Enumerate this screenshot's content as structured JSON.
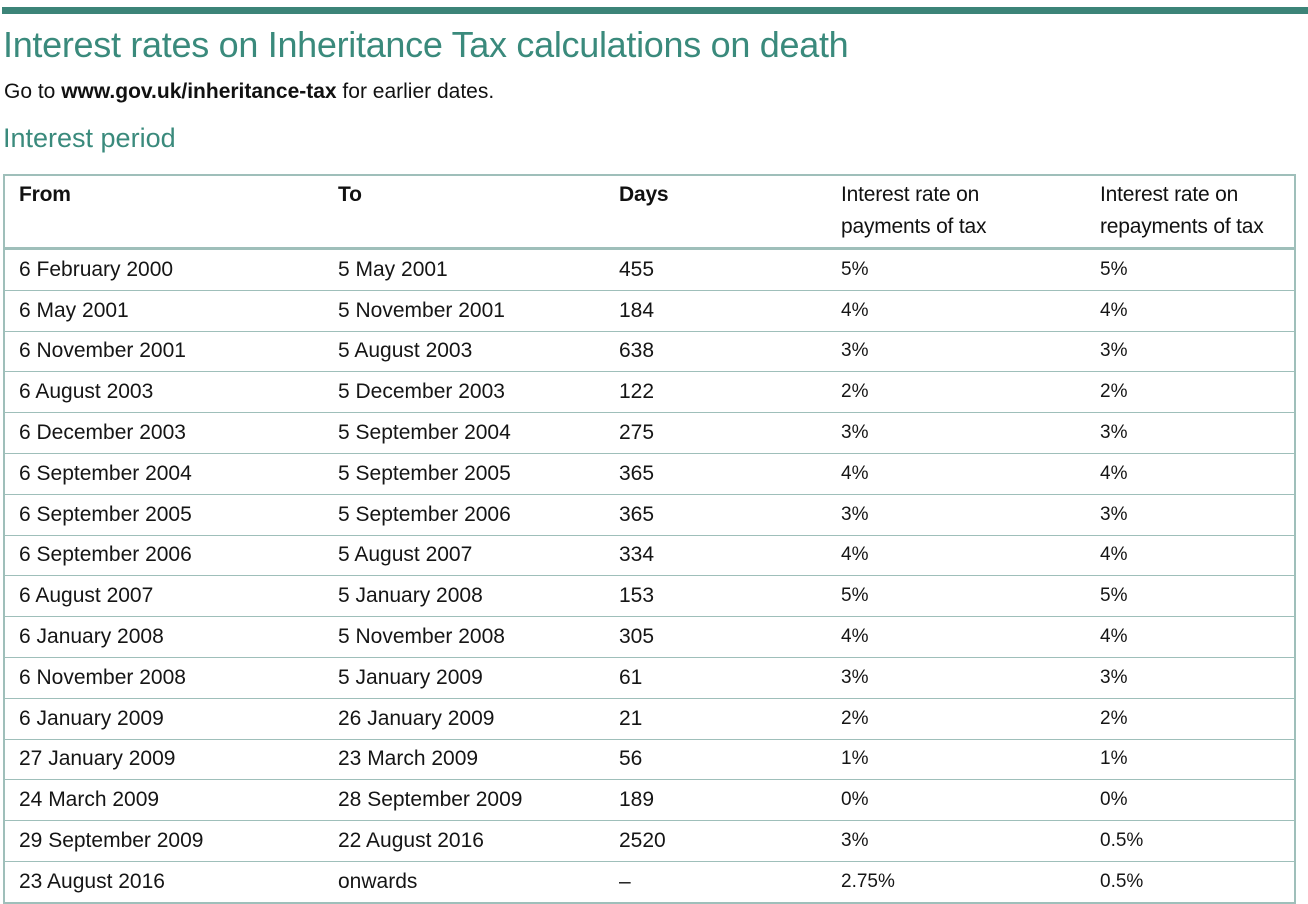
{
  "document": {
    "title": "Interest rates on Inheritance Tax calculations on death",
    "subtitle": {
      "prefix": "Go to ",
      "link": "www.gov.uk/inheritance-tax",
      "suffix": " for earlier dates."
    },
    "section_heading": "Interest period",
    "accent_color": "#3a8a7c",
    "border_color": "#9fbfba"
  },
  "table": {
    "headers": {
      "from": "From",
      "to": "To",
      "days": "Days",
      "payments_line1": "Interest rate on",
      "payments_line2": "payments of tax",
      "repayments_line1": "Interest rate on",
      "repayments_line2": "repayments of tax"
    },
    "rows": [
      {
        "from": "6 February 2000",
        "to": "5 May 2001",
        "days": "455",
        "payments": "5%",
        "repayments": "5%"
      },
      {
        "from": "6 May 2001",
        "to": "5 November 2001",
        "days": "184",
        "payments": "4%",
        "repayments": "4%"
      },
      {
        "from": "6 November 2001",
        "to": "5 August 2003",
        "days": "638",
        "payments": "3%",
        "repayments": "3%"
      },
      {
        "from": "6 August 2003",
        "to": "5 December 2003",
        "days": "122",
        "payments": "2%",
        "repayments": "2%"
      },
      {
        "from": "6 December 2003",
        "to": "5 September 2004",
        "days": "275",
        "payments": "3%",
        "repayments": "3%"
      },
      {
        "from": "6 September 2004",
        "to": "5 September 2005",
        "days": "365",
        "payments": "4%",
        "repayments": "4%"
      },
      {
        "from": "6 September 2005",
        "to": "5 September 2006",
        "days": "365",
        "payments": "3%",
        "repayments": "3%"
      },
      {
        "from": "6 September 2006",
        "to": "5 August 2007",
        "days": "334",
        "payments": "4%",
        "repayments": "4%"
      },
      {
        "from": "6 August 2007",
        "to": "5 January 2008",
        "days": "153",
        "payments": "5%",
        "repayments": "5%"
      },
      {
        "from": "6 January 2008",
        "to": "5 November 2008",
        "days": "305",
        "payments": "4%",
        "repayments": "4%"
      },
      {
        "from": "6 November 2008",
        "to": "5 January 2009",
        "days": "61",
        "payments": "3%",
        "repayments": "3%"
      },
      {
        "from": "6 January 2009",
        "to": "26 January 2009",
        "days": "21",
        "payments": "2%",
        "repayments": "2%"
      },
      {
        "from": "27 January 2009",
        "to": "23 March 2009",
        "days": "56",
        "payments": "1%",
        "repayments": "1%"
      },
      {
        "from": "24 March 2009",
        "to": "28 September 2009",
        "days": "189",
        "payments": "0%",
        "repayments": "0%"
      },
      {
        "from": "29 September 2009",
        "to": "22 August 2016",
        "days": "2520",
        "payments": "3%",
        "repayments": "0.5%"
      },
      {
        "from": "23 August 2016",
        "to": "onwards",
        "days": "–",
        "payments": "2.75%",
        "repayments": "0.5%"
      }
    ]
  }
}
